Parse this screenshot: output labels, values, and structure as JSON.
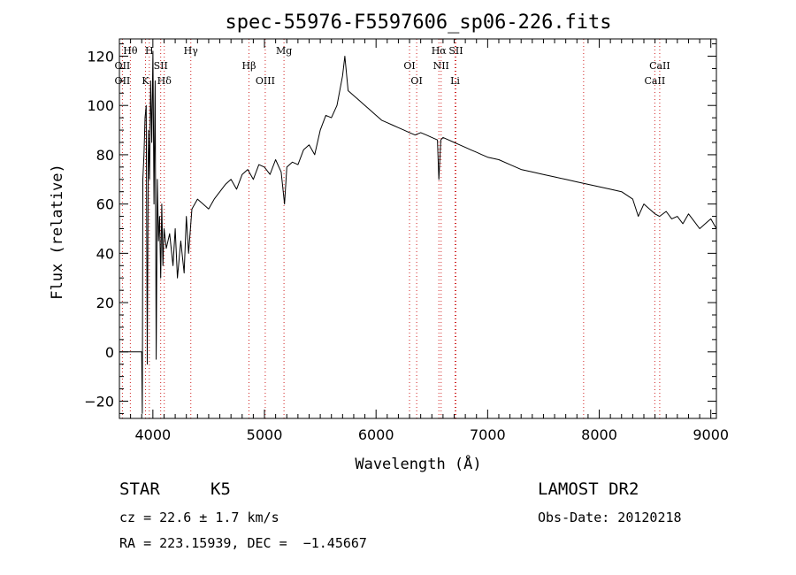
{
  "chart_data": {
    "type": "line",
    "title": "spec-55976-F5597606_sp06-226.fits",
    "xlabel": "Wavelength (Å)",
    "ylabel": "Flux (relative)",
    "xlim": [
      3700,
      9050
    ],
    "ylim": [
      -27,
      127
    ],
    "x_ticks": [
      4000,
      5000,
      6000,
      7000,
      8000,
      9000
    ],
    "y_ticks": [
      -20,
      0,
      20,
      40,
      60,
      80,
      100,
      120
    ],
    "grid": false,
    "series": [
      {
        "x": [
          3700,
          3900,
          3905,
          3910,
          3920,
          3930,
          3940,
          3950,
          3960,
          3970,
          3980,
          3990,
          4000,
          4010,
          4020,
          4030,
          4040,
          4050,
          4060,
          4070,
          4080,
          4090,
          4100,
          4120,
          4150,
          4180,
          4200,
          4220,
          4250,
          4280,
          4300,
          4320,
          4350,
          4400,
          4450,
          4500,
          4550,
          4600,
          4650,
          4700,
          4750,
          4800,
          4850,
          4900,
          4950,
          5000,
          5050,
          5100,
          5150,
          5180,
          5200,
          5250,
          5300,
          5350,
          5400,
          5450,
          5500,
          5550,
          5600,
          5650,
          5700,
          5720,
          5750,
          5800,
          5850,
          5900,
          5950,
          6000,
          6050,
          6100,
          6150,
          6200,
          6250,
          6300,
          6350,
          6400,
          6450,
          6500,
          6550,
          6563,
          6580,
          6600,
          6650,
          6700,
          6750,
          6800,
          6850,
          6900,
          6950,
          7000,
          7100,
          7200,
          7300,
          7400,
          7500,
          7600,
          7700,
          7800,
          7900,
          8000,
          8100,
          8200,
          8300,
          8350,
          8400,
          8450,
          8500,
          8540,
          8600,
          8650,
          8700,
          8750,
          8800,
          8850,
          8900,
          8950,
          9000,
          9050
        ],
        "y": [
          0,
          0,
          -25,
          70,
          80,
          95,
          100,
          -5,
          90,
          70,
          110,
          85,
          122,
          60,
          110,
          -3,
          70,
          45,
          55,
          30,
          60,
          35,
          50,
          42,
          48,
          35,
          50,
          30,
          45,
          32,
          55,
          40,
          58,
          62,
          60,
          58,
          62,
          65,
          68,
          70,
          66,
          72,
          74,
          70,
          76,
          75,
          72,
          78,
          73,
          60,
          75,
          77,
          76,
          82,
          84,
          80,
          90,
          96,
          95,
          100,
          112,
          120,
          106,
          104,
          102,
          100,
          98,
          96,
          94,
          93,
          92,
          91,
          90,
          89,
          88,
          89,
          88,
          87,
          86,
          70,
          86,
          87,
          86,
          85,
          84,
          83,
          82,
          81,
          80,
          79,
          78,
          76,
          74,
          73,
          72,
          71,
          70,
          69,
          68,
          67,
          66,
          65,
          62,
          55,
          60,
          58,
          56,
          55,
          57,
          54,
          55,
          52,
          56,
          53,
          50,
          52,
          54,
          50
        ],
        "note": "approximate spectrum trace"
      }
    ],
    "lines_top": [
      {
        "label": "Hθ",
        "x": 3798
      },
      {
        "label": "OII",
        "x": 3727
      },
      {
        "label": "H",
        "x": 3968
      },
      {
        "label": "SII",
        "x": 4070
      },
      {
        "label": "Hγ",
        "x": 4340
      },
      {
        "label": "Hβ",
        "x": 4861
      },
      {
        "label": "Mg",
        "x": 5175
      },
      {
        "label": "OI",
        "x": 6300
      },
      {
        "label": "Hα",
        "x": 6563
      },
      {
        "label": "NII",
        "x": 6583
      },
      {
        "label": "SII",
        "x": 6716
      },
      {
        "label": "CaII",
        "x": 8542
      }
    ],
    "lines_bottom": [
      {
        "label": "OII",
        "x": 3727
      },
      {
        "label": "K",
        "x": 3934
      },
      {
        "label": "Hδ",
        "x": 4102
      },
      {
        "label": "OIII",
        "x": 5007
      },
      {
        "label": "OI",
        "x": 6364
      },
      {
        "label": "Li",
        "x": 6708
      },
      {
        "label": "CaII",
        "x": 8498
      }
    ],
    "line_markers": [
      3727,
      3798,
      3934,
      3968,
      4070,
      4102,
      4340,
      4861,
      5007,
      5175,
      6300,
      6364,
      6563,
      6583,
      6708,
      6716,
      7860,
      8498,
      8542
    ]
  },
  "info": {
    "class_label": "STAR",
    "subclass": "K5",
    "survey": "LAMOST DR2",
    "cz_text": "cz = 22.6 ± 1.7 km/s",
    "obs_date": "Obs-Date: 20120218",
    "coords": "RA = 223.15939, DEC =  −1.45667"
  },
  "colors": {
    "spectrum": "#000000",
    "line_marker": "#d02020"
  }
}
